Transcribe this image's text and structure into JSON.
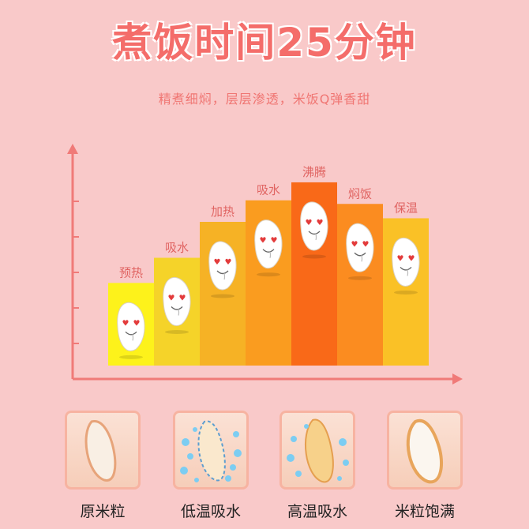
{
  "header": {
    "title": "煮饭时间25分钟",
    "subtitle": "精煮细焖，层层渗透，米饭Q弹香甜"
  },
  "chart_data": {
    "type": "bar",
    "categories": [
      "预热",
      "吸水",
      "加热",
      "吸水",
      "沸腾",
      "焖饭",
      "保温"
    ],
    "values": [
      2.3,
      3.0,
      4.0,
      4.6,
      5.1,
      4.5,
      4.1
    ],
    "ylim": [
      0,
      6
    ],
    "colors": [
      "#fdf21b",
      "#f5d329",
      "#f6b225",
      "#fa9c1f",
      "#f96918",
      "#fb8c20",
      "#fac126"
    ],
    "icon": "happy-rice-grain-icon"
  },
  "stages": [
    {
      "label": "原米粒",
      "icon": "raw-rice-grain-icon",
      "bubbles": false
    },
    {
      "label": "低温吸水",
      "icon": "rice-grain-absorbing-icon",
      "bubbles": true
    },
    {
      "label": "高温吸水",
      "icon": "rice-grain-heating-icon",
      "bubbles": true
    },
    {
      "label": "米粒饱满",
      "icon": "plump-rice-grain-icon",
      "bubbles": false
    }
  ]
}
